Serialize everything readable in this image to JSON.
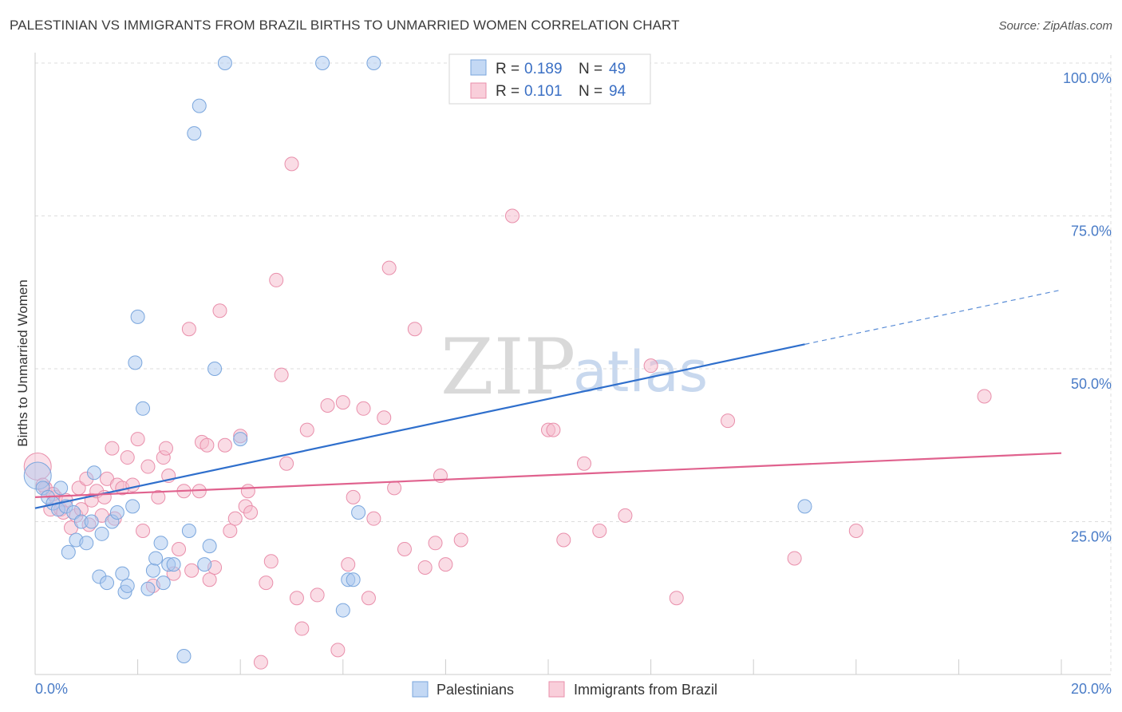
{
  "title": "PALESTINIAN VS IMMIGRANTS FROM BRAZIL BIRTHS TO UNMARRIED WOMEN CORRELATION CHART",
  "source": "Source: ZipAtlas.com",
  "watermark": {
    "zip": "ZIP",
    "atlas": "atlas"
  },
  "legend": {
    "r_label": "R =",
    "n_label": "N =",
    "series": [
      {
        "name": "Palestinians",
        "r": "0.189",
        "n": "49",
        "color": "#a9c8ef",
        "stroke": "#7aa6dd"
      },
      {
        "name": "Immigrants from Brazil",
        "r": "0.101",
        "n": "94",
        "color": "#f6b9cb",
        "stroke": "#e98fab"
      }
    ]
  },
  "chart_data": {
    "type": "scatter",
    "title": "PALESTINIAN VS IMMIGRANTS FROM BRAZIL BIRTHS TO UNMARRIED WOMEN CORRELATION CHART",
    "xlabel": "",
    "ylabel": "Births to Unmarried Women",
    "xlim": [
      0,
      20
    ],
    "ylim": [
      0,
      100
    ],
    "x_tick_labels": [
      "0.0%",
      "20.0%"
    ],
    "y_tick_labels": [
      "25.0%",
      "50.0%",
      "75.0%",
      "100.0%"
    ],
    "y_ticks": [
      25,
      50,
      75,
      100
    ],
    "x_minor_ticks": [
      0,
      2,
      4,
      6,
      8,
      10,
      12,
      14,
      16,
      18,
      20
    ],
    "series": [
      {
        "name": "Palestinians",
        "color": "#a9c8ef",
        "stroke": "#7aa6dd",
        "line_color": "#2f6fcc",
        "trend": {
          "x0": 0,
          "y0": 27.2,
          "x1": 15,
          "y1": 54.0,
          "dash_to_x": 20,
          "dash_to_y": 62.9
        },
        "points": [
          [
            0.05,
            32.5
          ],
          [
            0.15,
            30.5
          ],
          [
            0.25,
            29.0
          ],
          [
            0.35,
            28.0
          ],
          [
            0.45,
            27.0
          ],
          [
            0.5,
            30.5
          ],
          [
            0.6,
            27.5
          ],
          [
            0.65,
            20.0
          ],
          [
            0.75,
            26.5
          ],
          [
            0.8,
            22.0
          ],
          [
            0.9,
            25.0
          ],
          [
            1.0,
            21.5
          ],
          [
            1.1,
            25.0
          ],
          [
            1.15,
            33.0
          ],
          [
            1.25,
            16.0
          ],
          [
            1.3,
            23.0
          ],
          [
            1.4,
            15.0
          ],
          [
            1.5,
            25.0
          ],
          [
            1.6,
            26.5
          ],
          [
            1.7,
            16.5
          ],
          [
            1.75,
            13.5
          ],
          [
            1.8,
            14.5
          ],
          [
            1.9,
            27.5
          ],
          [
            1.95,
            51.0
          ],
          [
            2.0,
            58.5
          ],
          [
            2.1,
            43.5
          ],
          [
            2.2,
            14.0
          ],
          [
            2.3,
            17.0
          ],
          [
            2.35,
            19.0
          ],
          [
            2.45,
            21.5
          ],
          [
            2.5,
            15.0
          ],
          [
            2.6,
            18.0
          ],
          [
            2.7,
            18.0
          ],
          [
            2.9,
            3.0
          ],
          [
            3.0,
            23.5
          ],
          [
            3.1,
            88.5
          ],
          [
            3.2,
            93.0
          ],
          [
            3.3,
            18.0
          ],
          [
            3.4,
            21.0
          ],
          [
            3.5,
            50.0
          ],
          [
            3.7,
            100.0
          ],
          [
            4.0,
            38.5
          ],
          [
            5.6,
            100.0
          ],
          [
            6.0,
            10.5
          ],
          [
            6.1,
            15.5
          ],
          [
            6.2,
            15.5
          ],
          [
            6.3,
            26.5
          ],
          [
            6.6,
            100.0
          ],
          [
            15.0,
            27.5
          ]
        ]
      },
      {
        "name": "Immigrants from Brazil",
        "color": "#f6b9cb",
        "stroke": "#e98fab",
        "line_color": "#e0628e",
        "trend": {
          "x0": 0,
          "y0": 29.0,
          "x1": 20,
          "y1": 36.2
        },
        "points": [
          [
            0.05,
            34.0
          ],
          [
            0.2,
            30.5
          ],
          [
            0.3,
            27.0
          ],
          [
            0.4,
            29.0
          ],
          [
            0.5,
            27.0
          ],
          [
            0.6,
            28.5
          ],
          [
            0.7,
            24.0
          ],
          [
            0.8,
            26.0
          ],
          [
            0.85,
            30.5
          ],
          [
            0.9,
            27.0
          ],
          [
            1.0,
            32.0
          ],
          [
            1.05,
            24.5
          ],
          [
            1.1,
            28.5
          ],
          [
            1.2,
            30.0
          ],
          [
            1.3,
            26.0
          ],
          [
            1.35,
            29.0
          ],
          [
            1.4,
            32.0
          ],
          [
            1.5,
            37.0
          ],
          [
            1.55,
            25.5
          ],
          [
            1.6,
            31.0
          ],
          [
            1.7,
            30.5
          ],
          [
            1.8,
            35.5
          ],
          [
            1.9,
            31.0
          ],
          [
            2.0,
            38.5
          ],
          [
            2.1,
            23.5
          ],
          [
            2.2,
            34.0
          ],
          [
            2.3,
            14.5
          ],
          [
            2.4,
            29.0
          ],
          [
            2.5,
            35.5
          ],
          [
            2.55,
            37.0
          ],
          [
            2.6,
            32.5
          ],
          [
            2.7,
            16.5
          ],
          [
            2.8,
            20.5
          ],
          [
            2.9,
            30.0
          ],
          [
            3.0,
            56.5
          ],
          [
            3.05,
            17.0
          ],
          [
            3.2,
            30.0
          ],
          [
            3.25,
            38.0
          ],
          [
            3.35,
            37.5
          ],
          [
            3.4,
            15.5
          ],
          [
            3.5,
            17.5
          ],
          [
            3.6,
            59.5
          ],
          [
            3.7,
            37.5
          ],
          [
            3.8,
            23.5
          ],
          [
            3.9,
            25.5
          ],
          [
            4.0,
            39.0
          ],
          [
            4.1,
            27.5
          ],
          [
            4.15,
            30.0
          ],
          [
            4.2,
            26.5
          ],
          [
            4.4,
            2.0
          ],
          [
            4.5,
            15.0
          ],
          [
            4.6,
            18.5
          ],
          [
            4.7,
            64.5
          ],
          [
            4.8,
            49.0
          ],
          [
            4.9,
            34.5
          ],
          [
            5.0,
            83.5
          ],
          [
            5.1,
            12.5
          ],
          [
            5.2,
            7.5
          ],
          [
            5.3,
            40.0
          ],
          [
            5.5,
            13.0
          ],
          [
            5.7,
            44.0
          ],
          [
            5.9,
            4.0
          ],
          [
            6.0,
            44.5
          ],
          [
            6.1,
            18.0
          ],
          [
            6.2,
            29.0
          ],
          [
            6.4,
            43.5
          ],
          [
            6.5,
            12.5
          ],
          [
            6.6,
            25.5
          ],
          [
            6.8,
            42.0
          ],
          [
            6.9,
            66.5
          ],
          [
            7.0,
            30.5
          ],
          [
            7.2,
            20.5
          ],
          [
            7.4,
            56.5
          ],
          [
            7.6,
            17.5
          ],
          [
            7.8,
            21.5
          ],
          [
            7.9,
            32.5
          ],
          [
            8.0,
            18.0
          ],
          [
            8.3,
            22.0
          ],
          [
            9.3,
            75.0
          ],
          [
            10.0,
            40.0
          ],
          [
            10.1,
            40.0
          ],
          [
            10.3,
            22.0
          ],
          [
            10.7,
            34.5
          ],
          [
            11.0,
            23.5
          ],
          [
            11.5,
            26.0
          ],
          [
            12.0,
            50.5
          ],
          [
            12.5,
            12.5
          ],
          [
            13.5,
            41.5
          ],
          [
            14.8,
            19.0
          ],
          [
            16.0,
            23.5
          ],
          [
            18.5,
            45.5
          ],
          [
            0.15,
            31.0
          ],
          [
            0.35,
            29.5
          ],
          [
            0.55,
            26.5
          ]
        ]
      }
    ]
  }
}
